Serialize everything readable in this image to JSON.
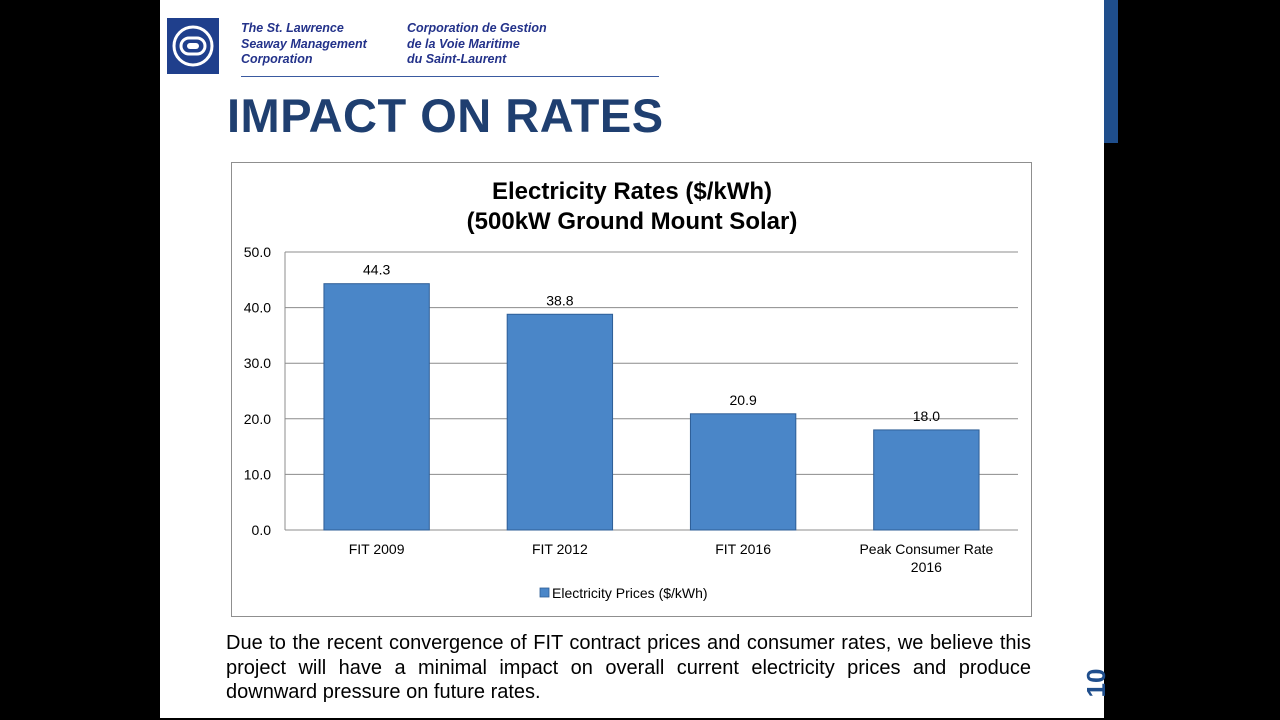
{
  "header": {
    "english_lines": [
      "The St. Lawrence",
      "Seaway Management",
      "Corporation"
    ],
    "french_lines": [
      "Corporation de Gestion",
      "de la Voie Maritime",
      "du Saint-Laurent"
    ]
  },
  "slide_title": "IMPACT ON RATES",
  "chart_data": {
    "type": "bar",
    "title_lines": [
      "Electricity Rates ($/kWh)",
      "(500kW Ground Mount Solar)"
    ],
    "categories": [
      [
        "FIT 2009"
      ],
      [
        "FIT 2012"
      ],
      [
        "FIT 2016"
      ],
      [
        "Peak Consumer Rate",
        "2016"
      ]
    ],
    "series": [
      {
        "name": "Electricity Prices ($/kWh)",
        "values": [
          44.3,
          38.8,
          20.9,
          18.0
        ]
      }
    ],
    "ylim": [
      0,
      50
    ],
    "yticks": [
      "0.0",
      "10.0",
      "20.0",
      "30.0",
      "40.0",
      "50.0"
    ],
    "data_labels": [
      "44.3",
      "38.8",
      "20.9",
      "18.0"
    ],
    "grid": true,
    "legend_position": "bottom",
    "bar_color": "#4a86c8"
  },
  "body_text": "Due to the recent convergence of FIT contract prices and consumer rates, we believe this project will have a minimal impact on overall current electricity prices and produce downward pressure on future rates.",
  "page_number": "10",
  "colors": {
    "brand": "#1f3f8c",
    "title": "#1f3f70"
  }
}
